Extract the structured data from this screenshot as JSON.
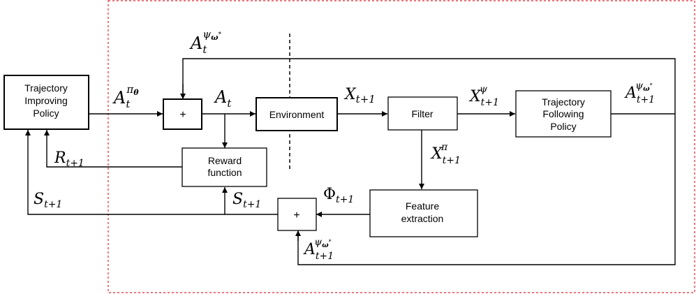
{
  "blocks": {
    "trajectory_improving_policy": [
      "Trajectory",
      "Improving",
      "Policy"
    ],
    "environment": "Environment",
    "filter": "Filter",
    "trajectory_following_policy": [
      "Trajectory",
      "Following",
      "Policy"
    ],
    "reward_function": [
      "Reward",
      "function"
    ],
    "feature_extraction": [
      "Feature",
      "extraction"
    ],
    "sum_top": "+",
    "sum_bottom": "+"
  },
  "signals": {
    "a_t": {
      "base": "A",
      "sub": "t"
    },
    "a_t_pi_theta": {
      "base": "A",
      "sub": "t",
      "sup_base": "π",
      "sup_sub": "θ"
    },
    "a_t_psi_omega": {
      "base": "A",
      "sub": "t",
      "sup_base": "ψ",
      "sup_sub": "ω",
      "sup_sub_sup": "*"
    },
    "x_t1": {
      "base": "X",
      "sub": "t+1"
    },
    "x_t1_psi": {
      "base": "X",
      "sub": "t+1",
      "sup": "ψ"
    },
    "x_t1_pi": {
      "base": "X",
      "sub": "t+1",
      "sup": "π"
    },
    "a_t1_psi_omega_right": {
      "base": "A",
      "sub": "t+1",
      "sup_base": "ψ",
      "sup_sub": "ω",
      "sup_sub_sup": "*"
    },
    "a_t1_psi_omega_bottom": {
      "base": "A",
      "sub": "t+1",
      "sup_base": "ψ",
      "sup_sub": "ω",
      "sup_sub_sup": "*"
    },
    "r_t1": {
      "base": "R",
      "sub": "t+1"
    },
    "s_t1_left": {
      "base": "S",
      "sub": "t+1"
    },
    "s_t1_mid": {
      "base": "S",
      "sub": "t+1"
    },
    "phi_t1": {
      "base": "Φ",
      "sub": "t+1"
    }
  },
  "colors": {
    "boundary": "#e8242a",
    "lines": "#000000",
    "background": "#ffffff"
  }
}
